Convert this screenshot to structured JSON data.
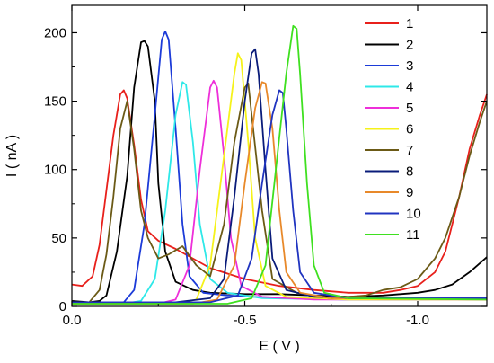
{
  "chart_data": {
    "type": "line",
    "xlabel": "E ( V )",
    "ylabel": "I ( nA )",
    "xlim": [
      0.0,
      -1.2
    ],
    "ylim": [
      0,
      220
    ],
    "xticks": [
      0.0,
      -0.5,
      -1.0
    ],
    "xtick_labels": [
      "0.0",
      "-0.5",
      "-1.0"
    ],
    "yticks": [
      0,
      50,
      100,
      150,
      200
    ],
    "ytick_labels": [
      "0",
      "50",
      "100",
      "150",
      "200"
    ],
    "grid": false,
    "legend_position": "top-right",
    "series": [
      {
        "name": "1",
        "color": "#e8201b",
        "points": [
          [
            0.0,
            16
          ],
          [
            -0.03,
            15
          ],
          [
            -0.06,
            22
          ],
          [
            -0.08,
            45
          ],
          [
            -0.1,
            85
          ],
          [
            -0.12,
            125
          ],
          [
            -0.14,
            155
          ],
          [
            -0.15,
            158
          ],
          [
            -0.16,
            152
          ],
          [
            -0.18,
            118
          ],
          [
            -0.2,
            78
          ],
          [
            -0.22,
            55
          ],
          [
            -0.25,
            48
          ],
          [
            -0.3,
            42
          ],
          [
            -0.4,
            28
          ],
          [
            -0.5,
            20
          ],
          [
            -0.6,
            15
          ],
          [
            -0.7,
            12
          ],
          [
            -0.8,
            10
          ],
          [
            -0.9,
            10
          ],
          [
            -0.95,
            12
          ],
          [
            -1.0,
            15
          ],
          [
            -1.05,
            25
          ],
          [
            -1.08,
            40
          ],
          [
            -1.12,
            80
          ],
          [
            -1.15,
            115
          ],
          [
            -1.18,
            140
          ],
          [
            -1.2,
            155
          ]
        ]
      },
      {
        "name": "2",
        "color": "#000000",
        "points": [
          [
            0.0,
            4
          ],
          [
            -0.05,
            3
          ],
          [
            -0.08,
            4
          ],
          [
            -0.1,
            8
          ],
          [
            -0.13,
            40
          ],
          [
            -0.16,
            95
          ],
          [
            -0.18,
            160
          ],
          [
            -0.2,
            193
          ],
          [
            -0.21,
            194
          ],
          [
            -0.22,
            190
          ],
          [
            -0.24,
            150
          ],
          [
            -0.25,
            90
          ],
          [
            -0.27,
            40
          ],
          [
            -0.3,
            18
          ],
          [
            -0.35,
            12
          ],
          [
            -0.4,
            10
          ],
          [
            -0.5,
            9
          ],
          [
            -0.6,
            9
          ],
          [
            -0.7,
            8
          ],
          [
            -0.8,
            7
          ],
          [
            -0.9,
            8
          ],
          [
            -1.0,
            10
          ],
          [
            -1.05,
            12
          ],
          [
            -1.1,
            16
          ],
          [
            -1.15,
            25
          ],
          [
            -1.2,
            36
          ]
        ]
      },
      {
        "name": "3",
        "color": "#1c3bd8",
        "points": [
          [
            0.0,
            2
          ],
          [
            -0.1,
            2
          ],
          [
            -0.15,
            3
          ],
          [
            -0.18,
            12
          ],
          [
            -0.21,
            60
          ],
          [
            -0.24,
            140
          ],
          [
            -0.26,
            195
          ],
          [
            -0.27,
            201
          ],
          [
            -0.28,
            195
          ],
          [
            -0.3,
            130
          ],
          [
            -0.32,
            60
          ],
          [
            -0.34,
            22
          ],
          [
            -0.38,
            10
          ],
          [
            -0.45,
            8
          ],
          [
            -0.6,
            6
          ],
          [
            -0.8,
            5
          ],
          [
            -1.0,
            5
          ],
          [
            -1.2,
            6
          ]
        ]
      },
      {
        "name": "4",
        "color": "#2ee8e8",
        "points": [
          [
            0.0,
            2
          ],
          [
            -0.15,
            2
          ],
          [
            -0.2,
            4
          ],
          [
            -0.24,
            20
          ],
          [
            -0.27,
            70
          ],
          [
            -0.3,
            140
          ],
          [
            -0.32,
            164
          ],
          [
            -0.33,
            162
          ],
          [
            -0.35,
            120
          ],
          [
            -0.37,
            60
          ],
          [
            -0.4,
            20
          ],
          [
            -0.45,
            10
          ],
          [
            -0.55,
            6
          ],
          [
            -0.8,
            5
          ],
          [
            -1.2,
            5
          ]
        ]
      },
      {
        "name": "5",
        "color": "#ee2fd9",
        "points": [
          [
            0.0,
            2
          ],
          [
            -0.25,
            2
          ],
          [
            -0.3,
            5
          ],
          [
            -0.34,
            30
          ],
          [
            -0.37,
            100
          ],
          [
            -0.4,
            160
          ],
          [
            -0.41,
            165
          ],
          [
            -0.42,
            160
          ],
          [
            -0.44,
            110
          ],
          [
            -0.46,
            50
          ],
          [
            -0.49,
            15
          ],
          [
            -0.55,
            7
          ],
          [
            -0.7,
            5
          ],
          [
            -1.2,
            5
          ]
        ]
      },
      {
        "name": "6",
        "color": "#f5f21a",
        "points": [
          [
            0.0,
            2
          ],
          [
            -0.3,
            2
          ],
          [
            -0.36,
            5
          ],
          [
            -0.4,
            30
          ],
          [
            -0.44,
            110
          ],
          [
            -0.47,
            170
          ],
          [
            -0.48,
            185
          ],
          [
            -0.49,
            180
          ],
          [
            -0.51,
            120
          ],
          [
            -0.53,
            50
          ],
          [
            -0.56,
            15
          ],
          [
            -0.62,
            7
          ],
          [
            -0.8,
            5
          ],
          [
            -1.2,
            5
          ]
        ]
      },
      {
        "name": "7",
        "color": "#6b5a16",
        "points": [
          [
            -0.05,
            3
          ],
          [
            -0.08,
            12
          ],
          [
            -0.1,
            38
          ],
          [
            -0.12,
            80
          ],
          [
            -0.14,
            130
          ],
          [
            -0.16,
            150
          ],
          [
            -0.18,
            115
          ],
          [
            -0.2,
            70
          ],
          [
            -0.22,
            50
          ],
          [
            -0.25,
            35
          ],
          [
            -0.28,
            38
          ],
          [
            -0.32,
            44
          ],
          [
            -0.36,
            30
          ],
          [
            -0.4,
            22
          ],
          [
            -0.44,
            60
          ],
          [
            -0.47,
            120
          ],
          [
            -0.5,
            160
          ],
          [
            -0.51,
            163
          ],
          [
            -0.52,
            140
          ],
          [
            -0.55,
            70
          ],
          [
            -0.58,
            20
          ],
          [
            -0.65,
            10
          ],
          [
            -0.75,
            6
          ],
          [
            -0.85,
            8
          ],
          [
            -0.9,
            12
          ],
          [
            -0.95,
            14
          ],
          [
            -1.0,
            20
          ],
          [
            -1.05,
            35
          ],
          [
            -1.08,
            50
          ],
          [
            -1.12,
            80
          ],
          [
            -1.15,
            110
          ],
          [
            -1.18,
            135
          ],
          [
            -1.2,
            150
          ]
        ]
      },
      {
        "name": "8",
        "color": "#0a1c7a",
        "points": [
          [
            0.0,
            3
          ],
          [
            -0.3,
            3
          ],
          [
            -0.4,
            6
          ],
          [
            -0.44,
            20
          ],
          [
            -0.47,
            80
          ],
          [
            -0.5,
            150
          ],
          [
            -0.52,
            185
          ],
          [
            -0.53,
            188
          ],
          [
            -0.54,
            170
          ],
          [
            -0.56,
            100
          ],
          [
            -0.58,
            35
          ],
          [
            -0.62,
            12
          ],
          [
            -0.7,
            7
          ],
          [
            -0.9,
            6
          ],
          [
            -1.2,
            6
          ]
        ]
      },
      {
        "name": "9",
        "color": "#e8892a",
        "points": [
          [
            0.0,
            2
          ],
          [
            -0.35,
            2
          ],
          [
            -0.42,
            5
          ],
          [
            -0.47,
            30
          ],
          [
            -0.5,
            90
          ],
          [
            -0.53,
            145
          ],
          [
            -0.55,
            164
          ],
          [
            -0.56,
            163
          ],
          [
            -0.58,
            130
          ],
          [
            -0.6,
            70
          ],
          [
            -0.62,
            25
          ],
          [
            -0.66,
            10
          ],
          [
            -0.75,
            6
          ],
          [
            -1.2,
            5
          ]
        ]
      },
      {
        "name": "10",
        "color": "#2034c0",
        "points": [
          [
            0.0,
            3
          ],
          [
            -0.4,
            3
          ],
          [
            -0.48,
            8
          ],
          [
            -0.52,
            35
          ],
          [
            -0.55,
            90
          ],
          [
            -0.58,
            140
          ],
          [
            -0.6,
            158
          ],
          [
            -0.61,
            156
          ],
          [
            -0.62,
            130
          ],
          [
            -0.64,
            70
          ],
          [
            -0.66,
            25
          ],
          [
            -0.7,
            10
          ],
          [
            -0.8,
            6
          ],
          [
            -1.2,
            6
          ]
        ]
      },
      {
        "name": "11",
        "color": "#3fe020",
        "points": [
          [
            0.0,
            2
          ],
          [
            -0.45,
            2
          ],
          [
            -0.52,
            6
          ],
          [
            -0.56,
            30
          ],
          [
            -0.59,
            100
          ],
          [
            -0.62,
            170
          ],
          [
            -0.64,
            205
          ],
          [
            -0.65,
            203
          ],
          [
            -0.66,
            170
          ],
          [
            -0.68,
            90
          ],
          [
            -0.7,
            30
          ],
          [
            -0.73,
            10
          ],
          [
            -0.8,
            6
          ],
          [
            -1.2,
            5
          ]
        ]
      }
    ]
  }
}
